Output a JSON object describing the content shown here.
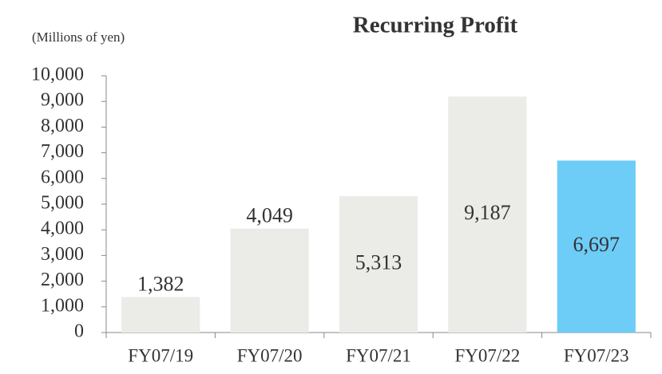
{
  "chart_data": {
    "type": "bar",
    "title": "Recurring Profit",
    "subtitle": "(Millions of yen)",
    "categories": [
      "FY07/19",
      "FY07/20",
      "FY07/21",
      "FY07/22",
      "FY07/23"
    ],
    "values": [
      1382,
      4049,
      5313,
      9187,
      6697
    ],
    "value_labels": [
      "1,382",
      "4,049",
      "5,313",
      "9,187",
      "6,697"
    ],
    "colors": [
      "#ebebe8",
      "#ebebe8",
      "#ebebe8",
      "#ebebe8",
      "#6dcdf6"
    ],
    "ylim": [
      0,
      10000
    ],
    "yticks": [
      0,
      {
        "value": 1000,
        "label": "1,000"
      },
      {
        "value": 2000,
        "label": "2,000"
      },
      {
        "value": 3000,
        "label": "3,000"
      },
      {
        "value": 4000,
        "label": "4,000"
      },
      {
        "value": 5000,
        "label": "5,000"
      },
      {
        "value": 6000,
        "label": "6,000"
      },
      {
        "value": 7000,
        "label": "7,000"
      },
      {
        "value": 8000,
        "label": "8,000"
      },
      {
        "value": 9000,
        "label": "9,000"
      },
      {
        "value": 10000,
        "label": "10,000"
      }
    ],
    "grid": false
  }
}
